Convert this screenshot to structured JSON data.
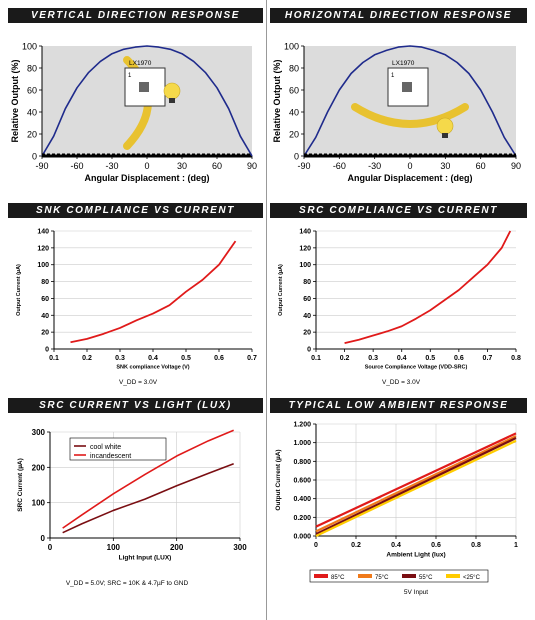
{
  "colors": {
    "header_bg": "#1a1a1a",
    "header_text": "#ffffff",
    "blue": "#1f2b8c",
    "red": "#e01a1a",
    "dark_red": "#7a0e12"
  },
  "charts": [
    {
      "header": "VERTICAL DIRECTION RESPONSE",
      "chart_data": {
        "type": "line",
        "ylabel": "Relative Output (%)",
        "xlabel": "Angular Displacement : (deg)",
        "xlim": [
          -90,
          90
        ],
        "ylim": [
          0,
          100
        ],
        "xticks": [
          -90,
          -60,
          -30,
          0,
          30,
          60,
          90
        ],
        "yticks": [
          0,
          20,
          40,
          60,
          80,
          100
        ],
        "x": [
          -90,
          -80,
          -70,
          -60,
          -50,
          -40,
          -30,
          -20,
          -10,
          0,
          10,
          20,
          30,
          40,
          50,
          60,
          70,
          80,
          90
        ],
        "series": [
          {
            "values": [
              0,
              18,
              43,
              62,
              76,
              86,
              93,
              97,
              99,
              100,
              99,
              97,
              93,
              86,
              76,
              62,
              43,
              18,
              0
            ]
          }
        ],
        "chip_label": "LX1970",
        "pin_label": "1"
      }
    },
    {
      "header": "HORIZONTAL DIRECTION RESPONSE",
      "chart_data": {
        "type": "line",
        "ylabel": "Relative Output (%)",
        "xlabel": "Angular Displacement : (deg)",
        "xlim": [
          -90,
          90
        ],
        "ylim": [
          0,
          100
        ],
        "xticks": [
          -90,
          -60,
          -30,
          0,
          30,
          60,
          90
        ],
        "yticks": [
          0,
          20,
          40,
          60,
          80,
          100
        ],
        "x": [
          -90,
          -80,
          -70,
          -60,
          -50,
          -40,
          -30,
          -20,
          -10,
          0,
          10,
          20,
          30,
          40,
          50,
          60,
          70,
          80,
          90
        ],
        "series": [
          {
            "values": [
              0,
              17,
              40,
              60,
              75,
              85,
              92,
              96,
              99,
              100,
              99,
              96,
              92,
              85,
              75,
              60,
              40,
              17,
              0
            ]
          }
        ],
        "chip_label": "LX1970",
        "pin_label": "1"
      }
    },
    {
      "header": "SNK COMPLIANCE VS CURRENT",
      "chart_data": {
        "type": "line",
        "ylabel": "Output Current (µA)",
        "xlabel": "SNK compliance Voltage (V)",
        "xlim": [
          0.1,
          0.7
        ],
        "ylim": [
          0,
          140
        ],
        "xticks": [
          0.1,
          0.2,
          0.3,
          0.4,
          0.5,
          0.6,
          0.7
        ],
        "yticks": [
          0,
          20,
          40,
          60,
          80,
          100,
          120,
          140
        ],
        "grid": true,
        "x": [
          0.15,
          0.2,
          0.25,
          0.3,
          0.35,
          0.4,
          0.45,
          0.5,
          0.55,
          0.6,
          0.65
        ],
        "series": [
          {
            "values": [
              8,
              12,
              18,
              25,
              34,
              42,
              52,
              68,
              82,
              100,
              128
            ]
          }
        ],
        "note": "V_DD = 3.0V"
      }
    },
    {
      "header": "SRC COMPLIANCE VS CURRENT",
      "chart_data": {
        "type": "line",
        "ylabel": "Output Current (µA)",
        "xlabel": "Source Compliance Voltage (VDD-SRC)",
        "xlim": [
          0.1,
          0.8
        ],
        "ylim": [
          0,
          140
        ],
        "xticks": [
          0.1,
          0.2,
          0.3,
          0.4,
          0.5,
          0.6,
          0.7,
          0.8
        ],
        "yticks": [
          0,
          20,
          40,
          60,
          80,
          100,
          120,
          140
        ],
        "grid": true,
        "x": [
          0.2,
          0.25,
          0.3,
          0.35,
          0.4,
          0.45,
          0.5,
          0.55,
          0.6,
          0.65,
          0.7,
          0.75,
          0.78
        ],
        "series": [
          {
            "values": [
              7,
              11,
              16,
              21,
              27,
              36,
              46,
              58,
              70,
              85,
              100,
              120,
              140
            ]
          }
        ],
        "note": "V_DD = 3.0V"
      }
    },
    {
      "header": "SRC CURRENT VS LIGHT (LUX)",
      "chart_data": {
        "type": "line",
        "ylabel": "SRC Current (µA)",
        "xlabel": "Light Input (LUX)",
        "xlim": [
          0,
          300
        ],
        "ylim": [
          0,
          300
        ],
        "xticks": [
          0,
          100,
          200,
          300
        ],
        "yticks": [
          0,
          100,
          200,
          300
        ],
        "grid": true,
        "legend": "top-left",
        "x": [
          20,
          50,
          100,
          150,
          200,
          250,
          290
        ],
        "series": [
          {
            "name": "cool white",
            "values": [
              15,
              40,
              78,
              110,
              148,
              183,
              210
            ]
          },
          {
            "name": "incandescent",
            "values": [
              28,
              65,
              125,
              180,
              232,
              275,
              305
            ]
          }
        ],
        "note": "V_DD = 5.0V; SRC = 10K & 4.7µF to GND"
      }
    },
    {
      "header": "TYPICAL LOW AMBIENT RESPONSE",
      "chart_data": {
        "type": "line",
        "ylabel": "Output Current (µA)",
        "xlabel": "Ambient Light (lux)",
        "xlim": [
          0,
          1
        ],
        "ylim": [
          0,
          1.2
        ],
        "xticks": [
          0,
          0.2,
          0.4,
          0.6,
          0.8,
          1
        ],
        "yticks": [
          0,
          0.2,
          0.4,
          0.6,
          0.8,
          1.0,
          1.2
        ],
        "ytick_labels": [
          "0.000",
          "0.200",
          "0.400",
          "0.600",
          "0.800",
          "1.000",
          "1.200"
        ],
        "grid": true,
        "legend": "bottom",
        "x": [
          0,
          1
        ],
        "series": [
          {
            "name": "85°C",
            "values": [
              0.1,
              1.1
            ],
            "color": "#e01a1a"
          },
          {
            "name": "75°C",
            "values": [
              0.05,
              1.07
            ],
            "color": "#f07a1a"
          },
          {
            "name": "55°C",
            "values": [
              0.02,
              1.05
            ],
            "color": "#7a0e12"
          },
          {
            "name": "<25°C",
            "values": [
              0.0,
              1.02
            ],
            "color": "#ffcc00"
          }
        ],
        "note": "5V Input"
      }
    }
  ]
}
